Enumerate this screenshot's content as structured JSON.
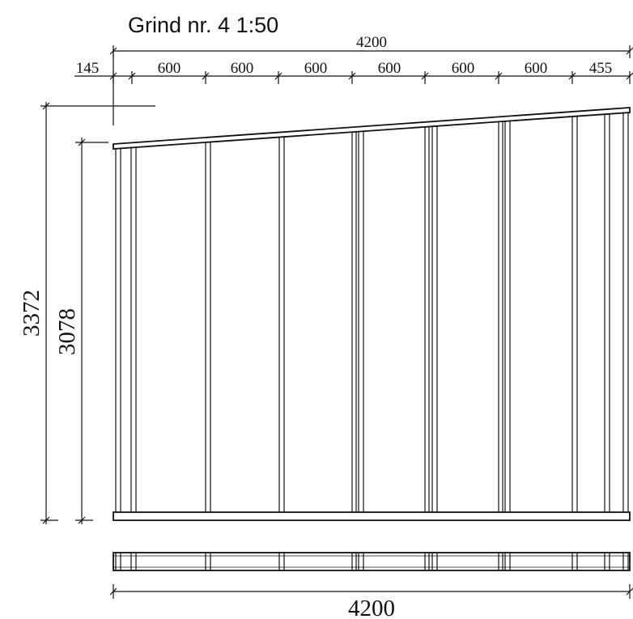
{
  "title": "Grind nr. 4  1:50",
  "dimensions": {
    "overall_top": "4200",
    "spacings": [
      "145",
      "600",
      "600",
      "600",
      "600",
      "600",
      "600",
      "455"
    ],
    "height_outer": "3372",
    "height_inner": "3078",
    "overall_bottom": "4200"
  },
  "colors": {
    "line": "#111111",
    "background": "#ffffff"
  }
}
